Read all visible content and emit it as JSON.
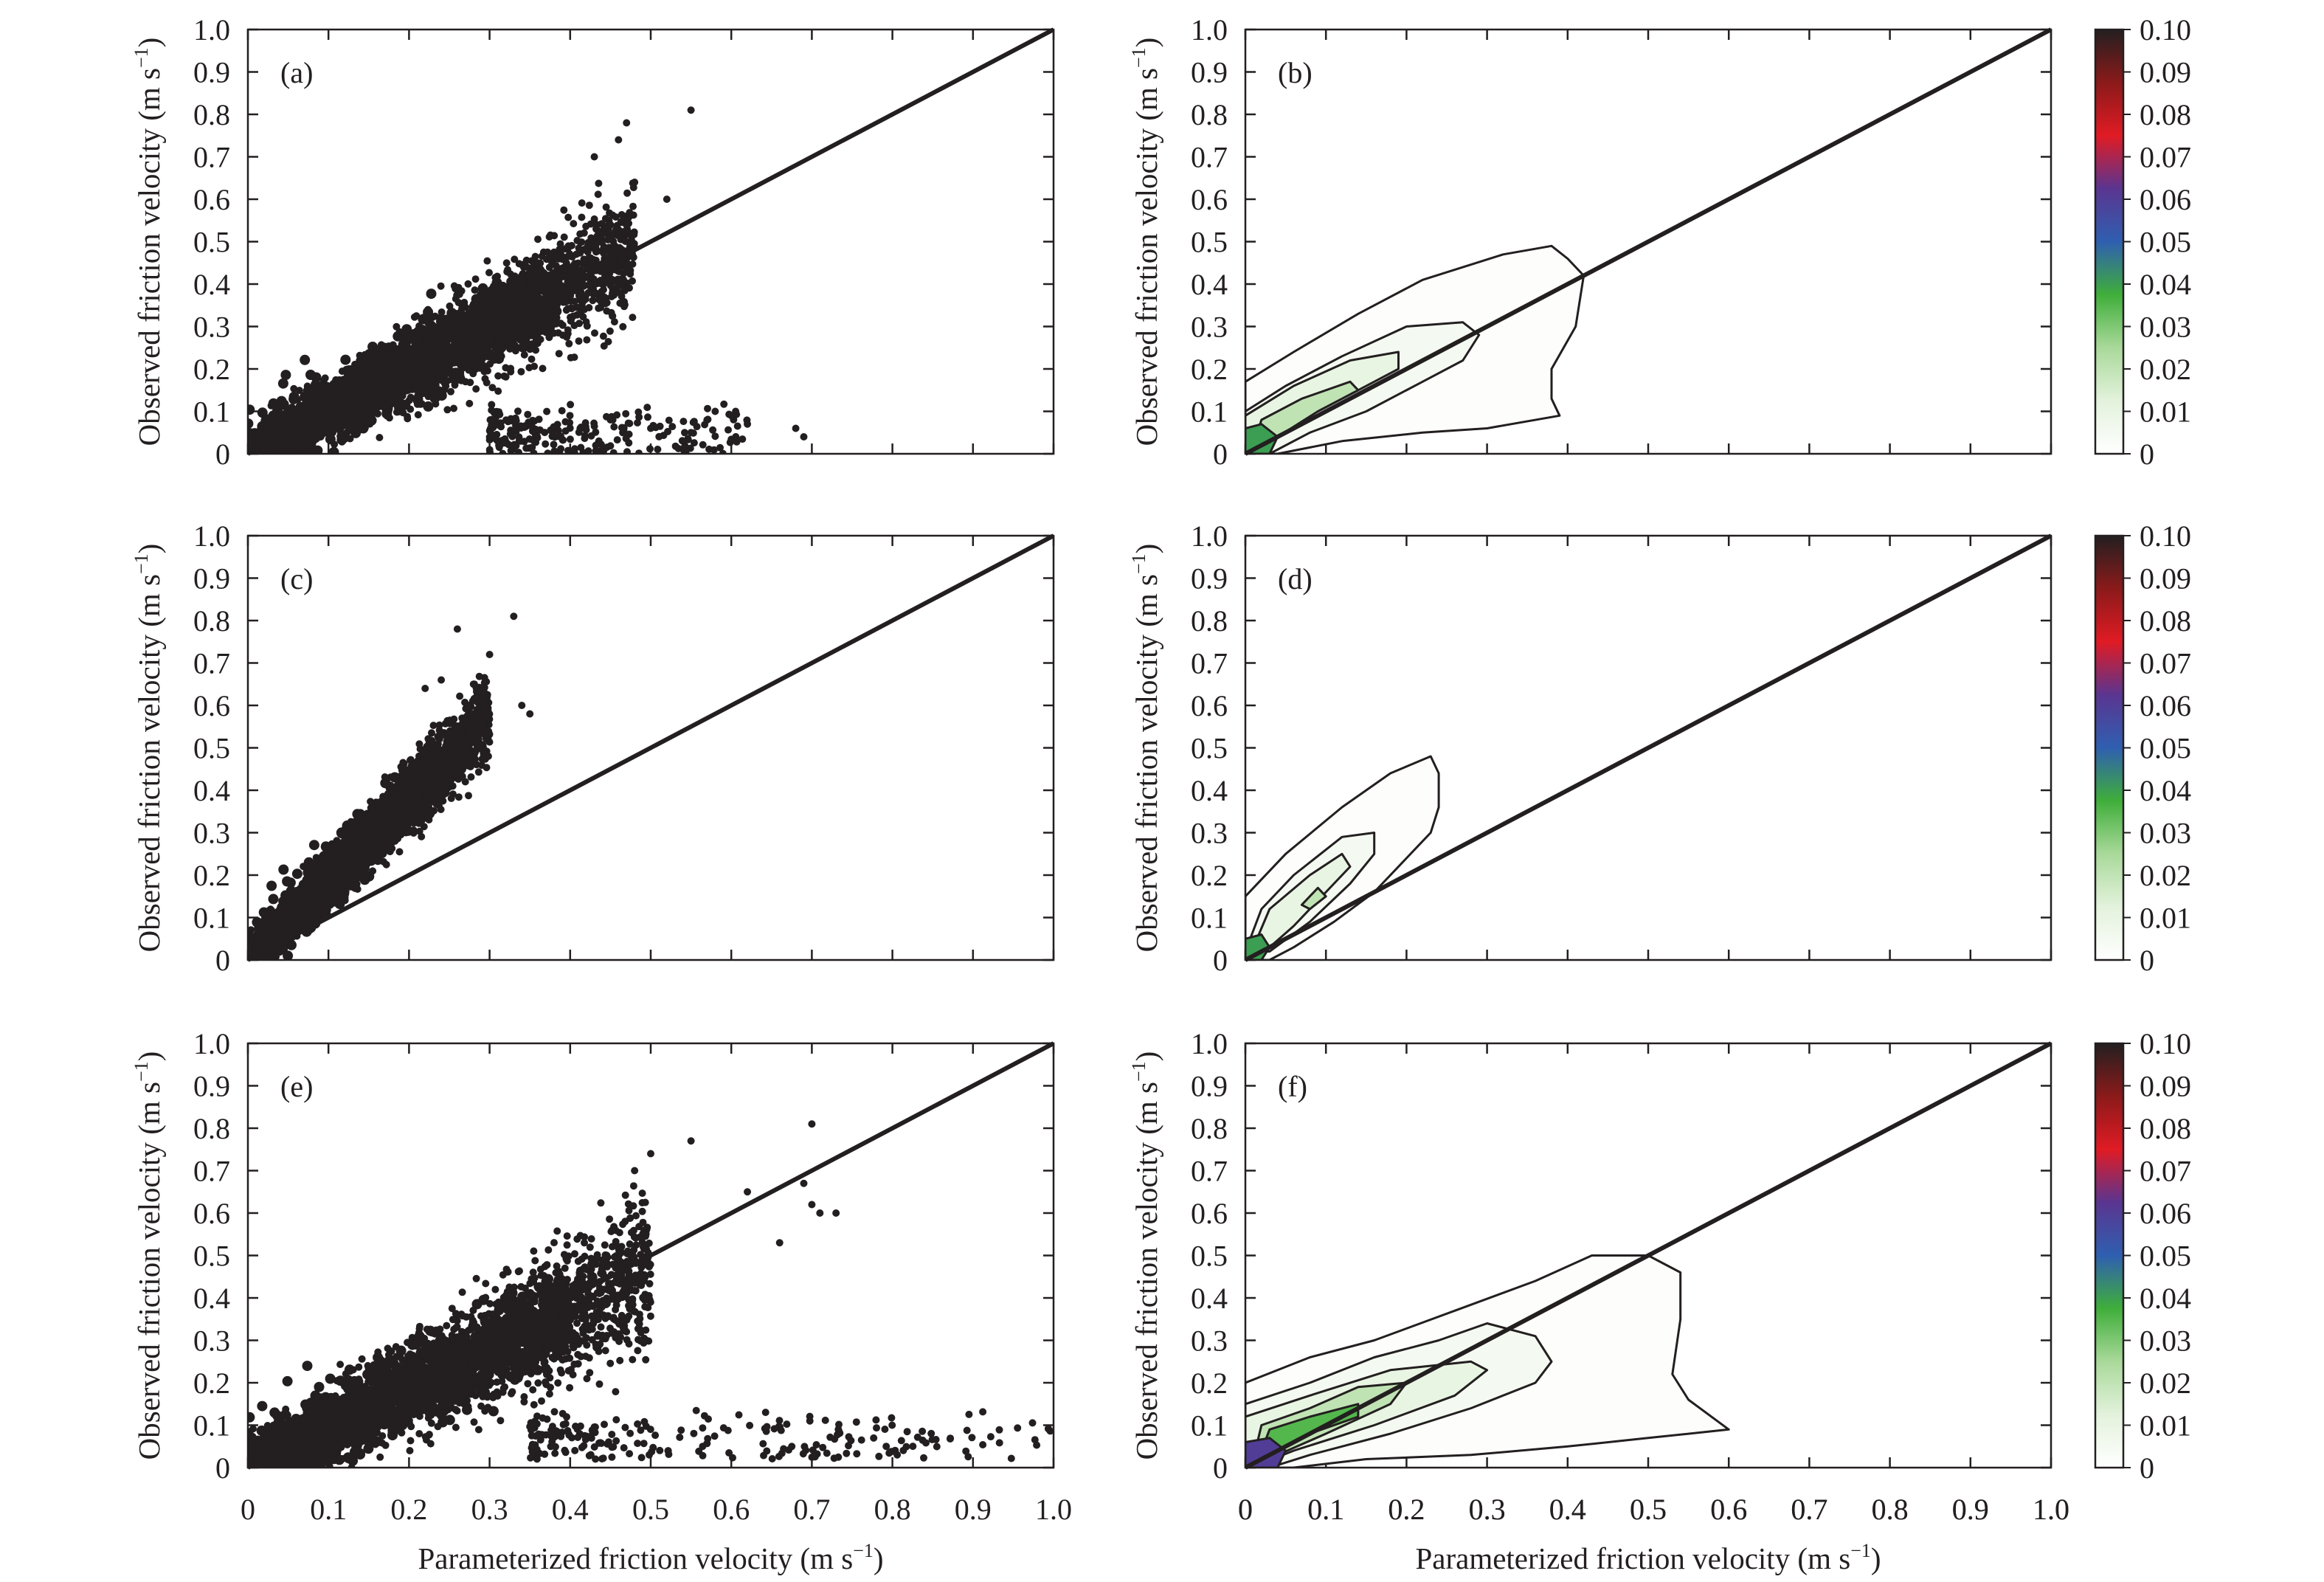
{
  "colors": {
    "scatter_point": "#231f20",
    "axis": "#231f20",
    "one_to_one_line": "#231f20",
    "colorbar_stops": [
      "#ffffff",
      "#e3f2dc",
      "#a9d99a",
      "#3fae3a",
      "#2f5fb0",
      "#5a3590",
      "#e01b24",
      "#8b1a1a",
      "#231f20"
    ]
  },
  "text": {
    "ylabel_main": "Observed friction velocity (m s",
    "ylabel_sup": "−1",
    "ylabel_end": ")",
    "xlabel_main": "Parameterized friction velocity (m s",
    "xlabel_sup": "−1",
    "xlabel_end": ")",
    "panel_labels": [
      "(a)",
      "(b)",
      "(c)",
      "(d)",
      "(e)",
      "(f)"
    ],
    "axis_ticks": [
      "0",
      "0.1",
      "0.2",
      "0.3",
      "0.4",
      "0.5",
      "0.6",
      "0.7",
      "0.8",
      "0.9",
      "1.0"
    ],
    "colorbar_ticks": [
      "0",
      "0.01",
      "0.02",
      "0.03",
      "0.04",
      "0.05",
      "0.06",
      "0.07",
      "0.08",
      "0.09",
      "0.10"
    ]
  },
  "chart_data": [
    {
      "panel": "(a)",
      "type": "scatter",
      "xlim": [
        0,
        1.0
      ],
      "ylim": [
        0,
        1.0
      ],
      "reference_line": [
        [
          0,
          0
        ],
        [
          1.0,
          1.0
        ]
      ],
      "cloud": {
        "slope": 1.0,
        "x_range": [
          0.0,
          0.48
        ],
        "spread": 0.07
      },
      "outliers": [
        [
          0.55,
          0.81
        ],
        [
          0.47,
          0.78
        ],
        [
          0.46,
          0.74
        ],
        [
          0.43,
          0.7
        ],
        [
          0.48,
          0.64
        ],
        [
          0.52,
          0.6
        ],
        [
          0.45,
          0.08
        ],
        [
          0.5,
          0.06
        ],
        [
          0.55,
          0.05
        ],
        [
          0.6,
          0.09
        ],
        [
          0.62,
          0.07
        ],
        [
          0.68,
          0.06
        ],
        [
          0.69,
          0.04
        ],
        [
          0.58,
          0.1
        ]
      ],
      "tail": {
        "x_range": [
          0.3,
          0.62
        ],
        "y_range": [
          0.0,
          0.12
        ]
      },
      "xticks": [
        0,
        0.1,
        0.2,
        0.3,
        0.4,
        0.5,
        0.6,
        0.7,
        0.8,
        0.9,
        1.0
      ],
      "yticks": [
        0,
        0.1,
        0.2,
        0.3,
        0.4,
        0.5,
        0.6,
        0.7,
        0.8,
        0.9,
        1.0
      ]
    },
    {
      "panel": "(b)",
      "type": "heatmap",
      "xlim": [
        0,
        1.0
      ],
      "ylim": [
        0,
        1.0
      ],
      "reference_line": [
        [
          0,
          0
        ],
        [
          1.0,
          1.0
        ]
      ],
      "colorbar": {
        "min": 0,
        "max": 0.1,
        "ticks": [
          0,
          0.01,
          0.02,
          0.03,
          0.04,
          0.05,
          0.06,
          0.07,
          0.08,
          0.09,
          0.1
        ]
      },
      "contours": [
        {
          "level": 0.001,
          "polygon": [
            [
              0.0,
              0.0
            ],
            [
              0.0,
              0.17
            ],
            [
              0.06,
              0.24
            ],
            [
              0.14,
              0.33
            ],
            [
              0.22,
              0.41
            ],
            [
              0.32,
              0.47
            ],
            [
              0.38,
              0.49
            ],
            [
              0.4,
              0.46
            ],
            [
              0.42,
              0.42
            ],
            [
              0.41,
              0.3
            ],
            [
              0.38,
              0.2
            ],
            [
              0.38,
              0.13
            ],
            [
              0.39,
              0.09
            ],
            [
              0.3,
              0.06
            ],
            [
              0.22,
              0.05
            ],
            [
              0.12,
              0.03
            ],
            [
              0.04,
              0.0
            ]
          ]
        },
        {
          "level": 0.005,
          "polygon": [
            [
              0.0,
              0.0
            ],
            [
              0.0,
              0.1
            ],
            [
              0.05,
              0.16
            ],
            [
              0.12,
              0.23
            ],
            [
              0.2,
              0.3
            ],
            [
              0.27,
              0.31
            ],
            [
              0.29,
              0.28
            ],
            [
              0.27,
              0.22
            ],
            [
              0.22,
              0.17
            ],
            [
              0.15,
              0.1
            ],
            [
              0.08,
              0.05
            ],
            [
              0.03,
              0.0
            ]
          ]
        },
        {
          "level": 0.01,
          "polygon": [
            [
              0.0,
              0.02
            ],
            [
              0.0,
              0.09
            ],
            [
              0.06,
              0.16
            ],
            [
              0.13,
              0.22
            ],
            [
              0.19,
              0.24
            ],
            [
              0.19,
              0.2
            ],
            [
              0.14,
              0.15
            ],
            [
              0.07,
              0.08
            ],
            [
              0.02,
              0.01
            ]
          ]
        },
        {
          "level": 0.02,
          "polygon": [
            [
              0.01,
              0.02
            ],
            [
              0.02,
              0.08
            ],
            [
              0.07,
              0.13
            ],
            [
              0.13,
              0.17
            ],
            [
              0.14,
              0.15
            ],
            [
              0.09,
              0.1
            ],
            [
              0.04,
              0.04
            ],
            [
              0.02,
              0.01
            ]
          ]
        },
        {
          "level": 0.04,
          "polygon": [
            [
              0.0,
              0.0
            ],
            [
              0.0,
              0.06
            ],
            [
              0.02,
              0.07
            ],
            [
              0.04,
              0.04
            ],
            [
              0.03,
              0.0
            ]
          ]
        }
      ]
    },
    {
      "panel": "(c)",
      "type": "scatter",
      "xlim": [
        0,
        1.0
      ],
      "ylim": [
        0,
        1.0
      ],
      "reference_line": [
        [
          0,
          0
        ],
        [
          1.0,
          1.0
        ]
      ],
      "cloud": {
        "slope": 1.9,
        "x_range": [
          0.0,
          0.3
        ],
        "spread": 0.06
      },
      "outliers": [
        [
          0.33,
          0.81
        ],
        [
          0.26,
          0.78
        ],
        [
          0.3,
          0.72
        ],
        [
          0.34,
          0.6
        ],
        [
          0.35,
          0.58
        ],
        [
          0.28,
          0.65
        ],
        [
          0.24,
          0.66
        ],
        [
          0.22,
          0.64
        ]
      ],
      "tail": null,
      "xticks": [
        0,
        0.1,
        0.2,
        0.3,
        0.4,
        0.5,
        0.6,
        0.7,
        0.8,
        0.9,
        1.0
      ],
      "yticks": [
        0,
        0.1,
        0.2,
        0.3,
        0.4,
        0.5,
        0.6,
        0.7,
        0.8,
        0.9,
        1.0
      ]
    },
    {
      "panel": "(d)",
      "type": "heatmap",
      "xlim": [
        0,
        1.0
      ],
      "ylim": [
        0,
        1.0
      ],
      "reference_line": [
        [
          0,
          0
        ],
        [
          1.0,
          1.0
        ]
      ],
      "colorbar": {
        "min": 0,
        "max": 0.1,
        "ticks": [
          0,
          0.01,
          0.02,
          0.03,
          0.04,
          0.05,
          0.06,
          0.07,
          0.08,
          0.09,
          0.1
        ]
      },
      "contours": [
        {
          "level": 0.001,
          "polygon": [
            [
              0.0,
              0.0
            ],
            [
              0.0,
              0.15
            ],
            [
              0.05,
              0.25
            ],
            [
              0.12,
              0.36
            ],
            [
              0.18,
              0.44
            ],
            [
              0.23,
              0.48
            ],
            [
              0.24,
              0.44
            ],
            [
              0.24,
              0.36
            ],
            [
              0.23,
              0.3
            ],
            [
              0.2,
              0.24
            ],
            [
              0.16,
              0.16
            ],
            [
              0.11,
              0.09
            ],
            [
              0.06,
              0.03
            ],
            [
              0.03,
              0.0
            ]
          ]
        },
        {
          "level": 0.005,
          "polygon": [
            [
              0.0,
              0.02
            ],
            [
              0.02,
              0.12
            ],
            [
              0.06,
              0.2
            ],
            [
              0.12,
              0.29
            ],
            [
              0.16,
              0.3
            ],
            [
              0.16,
              0.25
            ],
            [
              0.13,
              0.18
            ],
            [
              0.08,
              0.09
            ],
            [
              0.03,
              0.02
            ]
          ]
        },
        {
          "level": 0.01,
          "polygon": [
            [
              0.01,
              0.03
            ],
            [
              0.03,
              0.12
            ],
            [
              0.08,
              0.2
            ],
            [
              0.12,
              0.25
            ],
            [
              0.13,
              0.22
            ],
            [
              0.1,
              0.16
            ],
            [
              0.06,
              0.08
            ],
            [
              0.03,
              0.03
            ]
          ]
        },
        {
          "level": 0.02,
          "polygon": [
            [
              0.07,
              0.13
            ],
            [
              0.09,
              0.17
            ],
            [
              0.1,
              0.15
            ],
            [
              0.08,
              0.12
            ]
          ]
        },
        {
          "level": 0.04,
          "polygon": [
            [
              0.0,
              0.0
            ],
            [
              0.0,
              0.05
            ],
            [
              0.02,
              0.06
            ],
            [
              0.03,
              0.03
            ],
            [
              0.02,
              0.0
            ]
          ]
        }
      ]
    },
    {
      "panel": "(e)",
      "type": "scatter",
      "xlim": [
        0,
        1.0
      ],
      "ylim": [
        0,
        1.0
      ],
      "reference_line": [
        [
          0,
          0
        ],
        [
          1.0,
          1.0
        ]
      ],
      "cloud": {
        "slope": 0.92,
        "x_range": [
          0.0,
          0.5
        ],
        "spread": 0.08
      },
      "outliers": [
        [
          0.7,
          0.81
        ],
        [
          0.55,
          0.77
        ],
        [
          0.5,
          0.74
        ],
        [
          0.48,
          0.7
        ],
        [
          0.62,
          0.65
        ],
        [
          0.7,
          0.62
        ],
        [
          0.73,
          0.6
        ],
        [
          0.69,
          0.67
        ],
        [
          0.71,
          0.6
        ],
        [
          0.66,
          0.53
        ]
      ],
      "tail": {
        "x_range": [
          0.35,
          1.0
        ],
        "y_range": [
          0.02,
          0.14
        ]
      },
      "xticks": [
        0,
        0.1,
        0.2,
        0.3,
        0.4,
        0.5,
        0.6,
        0.7,
        0.8,
        0.9,
        1.0
      ],
      "yticks": [
        0,
        0.1,
        0.2,
        0.3,
        0.4,
        0.5,
        0.6,
        0.7,
        0.8,
        0.9,
        1.0
      ]
    },
    {
      "panel": "(f)",
      "type": "heatmap",
      "xlim": [
        0,
        1.0
      ],
      "ylim": [
        0,
        1.0
      ],
      "reference_line": [
        [
          0,
          0
        ],
        [
          1.0,
          1.0
        ]
      ],
      "colorbar": {
        "min": 0,
        "max": 0.1,
        "ticks": [
          0,
          0.01,
          0.02,
          0.03,
          0.04,
          0.05,
          0.06,
          0.07,
          0.08,
          0.09,
          0.1
        ]
      },
      "contours": [
        {
          "level": 0.001,
          "polygon": [
            [
              0.0,
              0.0
            ],
            [
              0.0,
              0.2
            ],
            [
              0.08,
              0.26
            ],
            [
              0.16,
              0.3
            ],
            [
              0.26,
              0.37
            ],
            [
              0.36,
              0.44
            ],
            [
              0.43,
              0.5
            ],
            [
              0.5,
              0.5
            ],
            [
              0.54,
              0.46
            ],
            [
              0.54,
              0.35
            ],
            [
              0.53,
              0.22
            ],
            [
              0.55,
              0.16
            ],
            [
              0.6,
              0.09
            ],
            [
              0.5,
              0.07
            ],
            [
              0.4,
              0.05
            ],
            [
              0.28,
              0.03
            ],
            [
              0.15,
              0.02
            ],
            [
              0.06,
              0.0
            ]
          ]
        },
        {
          "level": 0.005,
          "polygon": [
            [
              0.0,
              0.0
            ],
            [
              0.0,
              0.15
            ],
            [
              0.08,
              0.2
            ],
            [
              0.16,
              0.26
            ],
            [
              0.24,
              0.3
            ],
            [
              0.3,
              0.34
            ],
            [
              0.36,
              0.31
            ],
            [
              0.38,
              0.25
            ],
            [
              0.36,
              0.2
            ],
            [
              0.28,
              0.14
            ],
            [
              0.18,
              0.08
            ],
            [
              0.08,
              0.03
            ],
            [
              0.03,
              0.0
            ]
          ]
        },
        {
          "level": 0.01,
          "polygon": [
            [
              0.0,
              0.02
            ],
            [
              0.0,
              0.12
            ],
            [
              0.08,
              0.17
            ],
            [
              0.18,
              0.23
            ],
            [
              0.28,
              0.25
            ],
            [
              0.3,
              0.23
            ],
            [
              0.26,
              0.17
            ],
            [
              0.16,
              0.1
            ],
            [
              0.06,
              0.04
            ],
            [
              0.02,
              0.01
            ]
          ]
        },
        {
          "level": 0.02,
          "polygon": [
            [
              0.01,
              0.02
            ],
            [
              0.02,
              0.1
            ],
            [
              0.08,
              0.14
            ],
            [
              0.14,
              0.19
            ],
            [
              0.2,
              0.2
            ],
            [
              0.18,
              0.15
            ],
            [
              0.1,
              0.08
            ],
            [
              0.04,
              0.03
            ]
          ]
        },
        {
          "level": 0.035,
          "polygon": [
            [
              0.02,
              0.04
            ],
            [
              0.03,
              0.09
            ],
            [
              0.08,
              0.12
            ],
            [
              0.14,
              0.15
            ],
            [
              0.14,
              0.12
            ],
            [
              0.08,
              0.08
            ],
            [
              0.04,
              0.04
            ]
          ]
        },
        {
          "level": 0.06,
          "polygon": [
            [
              0.0,
              0.0
            ],
            [
              0.0,
              0.06
            ],
            [
              0.03,
              0.07
            ],
            [
              0.05,
              0.04
            ],
            [
              0.04,
              0.0
            ]
          ]
        }
      ]
    }
  ]
}
